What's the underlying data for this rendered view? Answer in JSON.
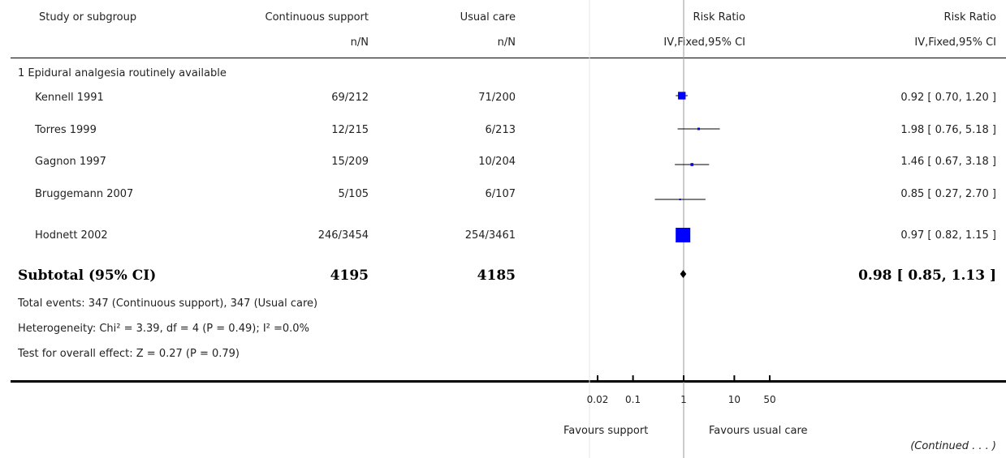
{
  "header": {
    "col_study": "Study or subgroup",
    "col_group1": "Continuous support",
    "col_group2": "Usual care",
    "col_plot": "Risk Ratio",
    "col_rr": "Risk Ratio",
    "sub_group1": "n/N",
    "sub_group2": "n/N",
    "sub_plot": "IV,Fixed,95% CI",
    "sub_rr": "IV,Fixed,95% CI"
  },
  "subgroup_title": "1 Epidural analgesia routinely available",
  "studies": [
    {
      "name": "Kennell 1991",
      "g1": "69/212",
      "g2": "71/200",
      "rr_text": "0.92 [ 0.70, 1.20 ]"
    },
    {
      "name": "Torres 1999",
      "g1": "12/215",
      "g2": "6/213",
      "rr_text": "1.98 [ 0.76, 5.18 ]"
    },
    {
      "name": "Gagnon 1997",
      "g1": "15/209",
      "g2": "10/204",
      "rr_text": "1.46 [ 0.67, 3.18 ]"
    },
    {
      "name": "Bruggemann 2007",
      "g1": "5/105",
      "g2": "6/107",
      "rr_text": "0.85 [ 0.27, 2.70 ]"
    },
    {
      "name": "Hodnett 2002",
      "g1": "246/3454",
      "g2": "254/3461",
      "rr_text": "0.97 [ 0.82, 1.15 ]"
    }
  ],
  "subtotal": {
    "label": "Subtotal (95% CI)",
    "g1": "4195",
    "g2": "4185",
    "rr_text": "0.98 [ 0.85, 1.13 ]"
  },
  "notes": {
    "events": "Total events: 347 (Continuous support), 347 (Usual care)",
    "heterogeneity": "Heterogeneity: Chi² = 3.39, df = 4 (P = 0.49); I² =0.0%",
    "overall": "Test for overall effect: Z = 0.27 (P = 0.79)"
  },
  "axis": {
    "favours_left": "Favours support",
    "favours_right": "Favours usual care"
  },
  "continued": "(Continued . . . )",
  "colors": {
    "marker": "#0000ff",
    "line": "#000000",
    "axis_line": "#9a9a9a"
  },
  "chart_data": {
    "type": "forest",
    "scale": "log",
    "xlim": [
      0.02,
      50
    ],
    "ticks": [
      0.02,
      0.1,
      1,
      10,
      50
    ],
    "tick_labels": [
      "0.02",
      "0.1",
      "1",
      "10",
      "50"
    ],
    "studies": [
      {
        "name": "Kennell 1991",
        "rr": 0.92,
        "lo": 0.7,
        "hi": 1.2,
        "weight": 0.2
      },
      {
        "name": "Torres 1999",
        "rr": 1.98,
        "lo": 0.76,
        "hi": 5.18,
        "weight": 0.02
      },
      {
        "name": "Gagnon 1997",
        "rr": 1.46,
        "lo": 0.67,
        "hi": 3.18,
        "weight": 0.03
      },
      {
        "name": "Bruggemann 2007",
        "rr": 0.85,
        "lo": 0.27,
        "hi": 2.7,
        "weight": 0.01
      },
      {
        "name": "Hodnett 2002",
        "rr": 0.97,
        "lo": 0.82,
        "hi": 1.15,
        "weight": 0.74
      }
    ],
    "subtotal": {
      "rr": 0.98,
      "lo": 0.85,
      "hi": 1.13
    }
  }
}
